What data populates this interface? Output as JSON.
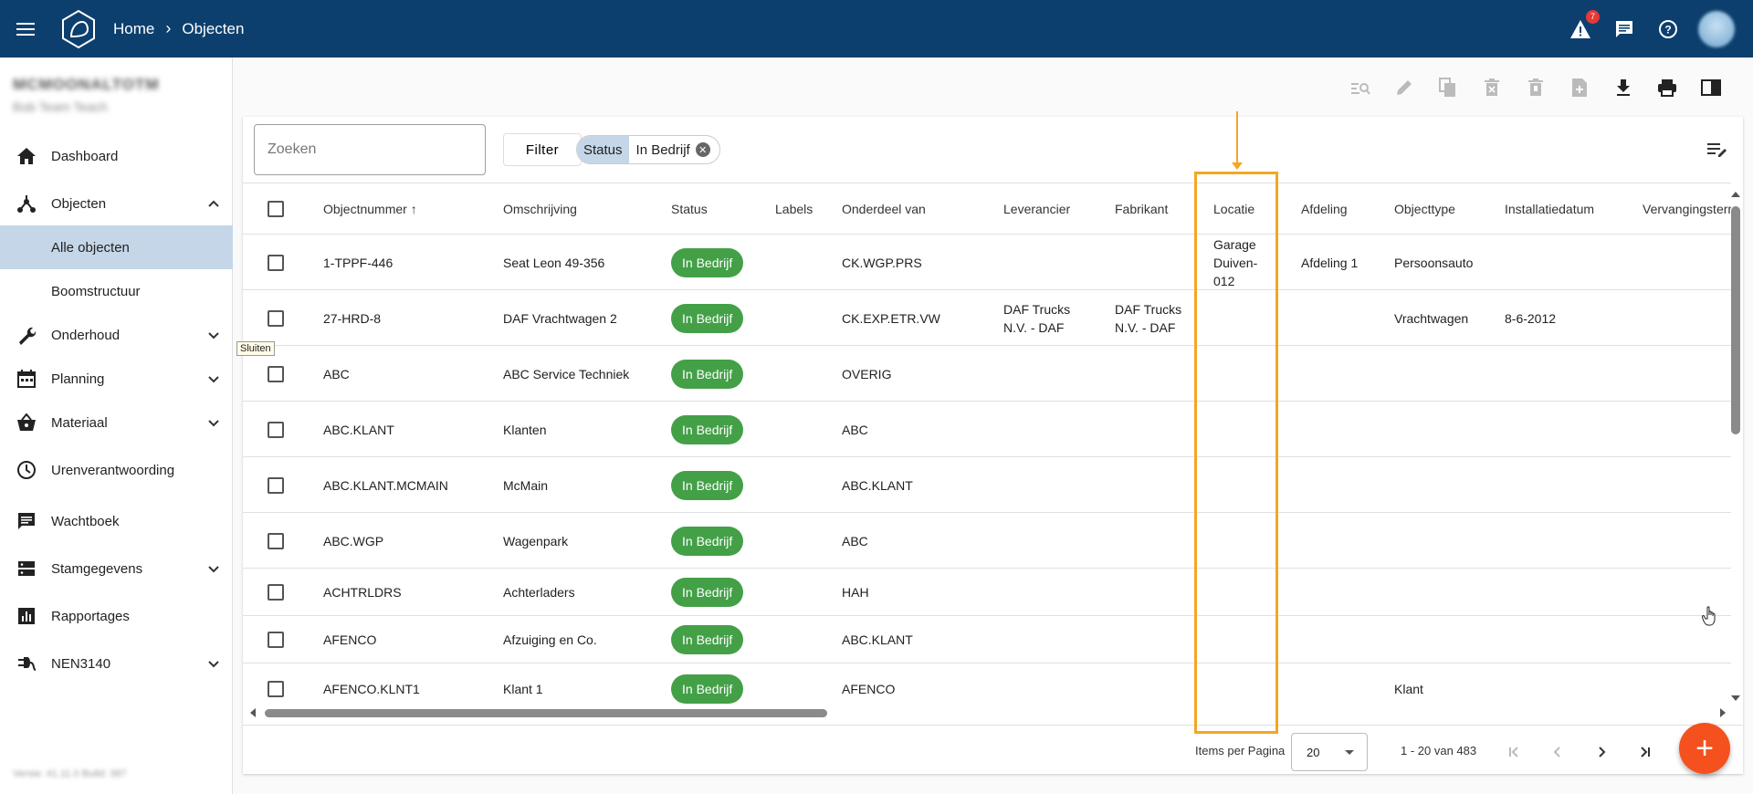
{
  "topbar": {
    "breadcrumb_home": "Home",
    "breadcrumb_current": "Objecten",
    "alert_count": "7",
    "bar_color": "#0d3f6e"
  },
  "sidebar": {
    "user_name": "MCMOONALTOTM",
    "user_team": "Bob Team Teach",
    "version": "Versie: 41.11.0 Build: 387",
    "items": [
      {
        "label": "Dashboard",
        "icon": "home-icon"
      },
      {
        "label": "Objecten",
        "icon": "objects-icon",
        "expanded": true
      },
      {
        "label": "Alle objecten",
        "sub": true,
        "active": true
      },
      {
        "label": "Boomstructuur",
        "sub": true
      },
      {
        "label": "Onderhoud",
        "icon": "wrench-icon"
      },
      {
        "label": "Planning",
        "icon": "calendar-icon"
      },
      {
        "label": "Materiaal",
        "icon": "basket-icon"
      },
      {
        "label": "Urenverantwoording",
        "icon": "clock-icon"
      },
      {
        "label": "Wachtboek",
        "icon": "message-icon"
      },
      {
        "label": "Stamgegevens",
        "icon": "storage-icon"
      },
      {
        "label": "Rapportages",
        "icon": "chart-icon"
      },
      {
        "label": "NEN3140",
        "icon": "plug-icon"
      }
    ],
    "tooltip": "Sluiten"
  },
  "search": {
    "placeholder": "Zoeken"
  },
  "filter": {
    "label": "Filter",
    "chip_key": "Status",
    "chip_value": "In Bedrijf"
  },
  "table": {
    "headers": [
      "Objectnummer",
      "Omschrijving",
      "Status",
      "Labels",
      "Onderdeel van",
      "Leverancier",
      "Fabrikant",
      "Locatie",
      "Afdeling",
      "Objecttype",
      "Installatiedatum",
      "Vervangingsterm"
    ],
    "sort_indicator": "↑",
    "rows": [
      {
        "nr": "1-TPPF-446",
        "oms": "Seat Leon 49-356",
        "status": "In Bedrijf",
        "labels": "",
        "onderdeel": "CK.WGP.PRS",
        "leverancier": "",
        "fabrikant": "",
        "locatie": "Garage Duiven-012",
        "afdeling": "Afdeling 1",
        "objecttype": "Persoonsauto",
        "installatie": ""
      },
      {
        "nr": "27-HRD-8",
        "oms": "DAF Vrachtwagen 2",
        "status": "In Bedrijf",
        "labels": "",
        "onderdeel": "CK.EXP.ETR.VW",
        "leverancier": "DAF Trucks N.V. - DAF",
        "fabrikant": "DAF Trucks N.V. - DAF",
        "locatie": "",
        "afdeling": "",
        "objecttype": "Vrachtwagen",
        "installatie": "8-6-2012"
      },
      {
        "nr": "ABC",
        "oms": "ABC Service Techniek",
        "status": "In Bedrijf",
        "labels": "",
        "onderdeel": "OVERIG",
        "leverancier": "",
        "fabrikant": "",
        "locatie": "",
        "afdeling": "",
        "objecttype": "",
        "installatie": ""
      },
      {
        "nr": "ABC.KLANT",
        "oms": "Klanten",
        "status": "In Bedrijf",
        "labels": "",
        "onderdeel": "ABC",
        "leverancier": "",
        "fabrikant": "",
        "locatie": "",
        "afdeling": "",
        "objecttype": "",
        "installatie": ""
      },
      {
        "nr": "ABC.KLANT.MCMAIN",
        "oms": "McMain",
        "status": "In Bedrijf",
        "labels": "",
        "onderdeel": "ABC.KLANT",
        "leverancier": "",
        "fabrikant": "",
        "locatie": "",
        "afdeling": "",
        "objecttype": "",
        "installatie": ""
      },
      {
        "nr": "ABC.WGP",
        "oms": "Wagenpark",
        "status": "In Bedrijf",
        "labels": "",
        "onderdeel": "ABC",
        "leverancier": "",
        "fabrikant": "",
        "locatie": "",
        "afdeling": "",
        "objecttype": "",
        "installatie": ""
      },
      {
        "nr": "ACHTRLDRS",
        "oms": "Achterladers",
        "status": "In Bedrijf",
        "labels": "",
        "onderdeel": "HAH",
        "leverancier": "",
        "fabrikant": "",
        "locatie": "",
        "afdeling": "",
        "objecttype": "",
        "installatie": ""
      },
      {
        "nr": "AFENCO",
        "oms": "Afzuiging en Co.",
        "status": "In Bedrijf",
        "labels": "",
        "onderdeel": "ABC.KLANT",
        "leverancier": "",
        "fabrikant": "",
        "locatie": "",
        "afdeling": "",
        "objecttype": "",
        "installatie": ""
      },
      {
        "nr": "AFENCO.KLNT1",
        "oms": "Klant 1",
        "status": "In Bedrijf",
        "labels": "",
        "onderdeel": "AFENCO",
        "leverancier": "",
        "fabrikant": "",
        "locatie": "",
        "afdeling": "",
        "objecttype": "Klant",
        "installatie": ""
      }
    ]
  },
  "pager": {
    "items_per_page_label": "Items per Pagina",
    "items_per_page": "20",
    "range": "1 - 20 van 483"
  },
  "fab_label": "+",
  "colors": {
    "accent": "#f4511e",
    "status": "#43a047",
    "highlight": "#f5a623",
    "active_nav": "#c5d6e8"
  }
}
